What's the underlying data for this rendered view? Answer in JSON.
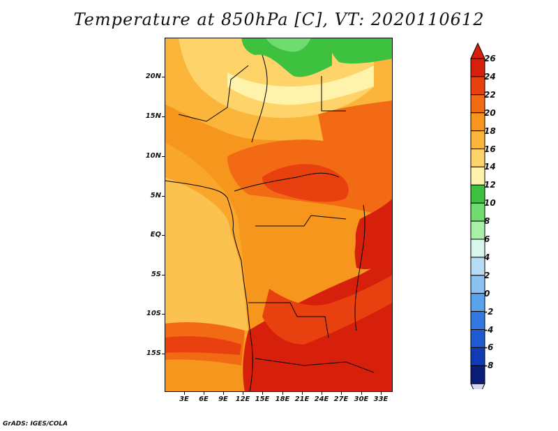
{
  "title": "Temperature at 850hPa [C], VT: 2020110612",
  "credit": "GrADS: IGES/COLA",
  "lat_ticks": [
    "20N",
    "15N",
    "10N",
    "5N",
    "EQ",
    "5S",
    "10S",
    "15S"
  ],
  "lon_ticks": [
    "3E",
    "6E",
    "9E",
    "12E",
    "15E",
    "18E",
    "21E",
    "24E",
    "27E",
    "30E",
    "33E"
  ],
  "colorbar": {
    "levels": [
      "26",
      "24",
      "22",
      "20",
      "18",
      "16",
      "14",
      "12",
      "10",
      "8",
      "6",
      "4",
      "2",
      "0",
      "-2",
      "-4",
      "-6",
      "-8"
    ],
    "colors": [
      "#d7200b",
      "#e8400f",
      "#f26a14",
      "#f7961d",
      "#fbb53a",
      "#fdd36a",
      "#fff2aa",
      "#3ec13e",
      "#6fdc6f",
      "#a8f0a8",
      "#d8f6ee",
      "#b8dcf5",
      "#8cc2f2",
      "#5aa2ec",
      "#3278e0",
      "#1e5ad2",
      "#0f3cb4",
      "#0a1e78"
    ],
    "under_color": "#d8d8f5"
  },
  "map_colors": {
    "c14": "#fff2aa",
    "c16": "#fdd36a",
    "c18": "#fbb53a",
    "c20": "#f7961d",
    "c22": "#f26a14",
    "c24": "#e8400f",
    "c26": "#d7200b",
    "g12": "#3ec13e",
    "g10": "#6fdc6f"
  }
}
